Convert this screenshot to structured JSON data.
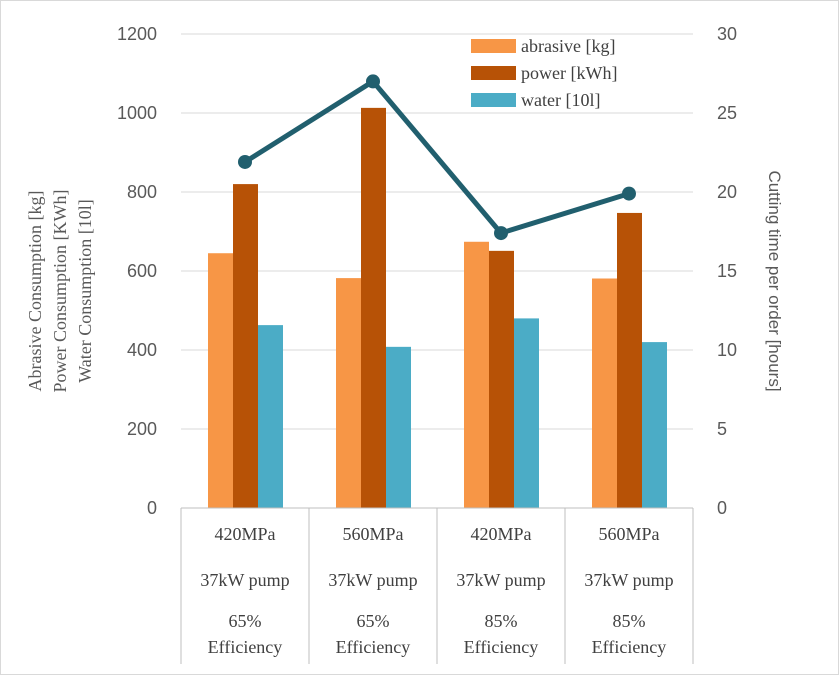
{
  "chart_data": {
    "type": "bar",
    "categories": [
      [
        "420MPa",
        "37kW pump",
        "65%",
        "Efficiency"
      ],
      [
        "560MPa",
        "37kW pump",
        "65%",
        "Efficiency"
      ],
      [
        "420MPa",
        "37kW pump",
        "85%",
        "Efficiency"
      ],
      [
        "560MPa",
        "37kW pump",
        "85%",
        "Efficiency"
      ]
    ],
    "series": [
      {
        "name": "abrasive [kg]",
        "values": [
          645,
          582,
          674,
          581
        ],
        "color": "#F79646",
        "axis": "left"
      },
      {
        "name": "power [kWh]",
        "values": [
          820,
          1013,
          651,
          747
        ],
        "color": "#B75206",
        "axis": "left"
      },
      {
        "name": "water [10l]",
        "values": [
          463,
          408,
          480,
          420
        ],
        "color": "#4BACC6",
        "axis": "left"
      }
    ],
    "line_series": {
      "name": "",
      "values": [
        21.9,
        27.0,
        17.4,
        19.9
      ],
      "color": "#215F6E",
      "axis": "right",
      "marker": "circle"
    },
    "ylabel_lines": [
      "Abrasive Consumption [kg]",
      "Power Consumption [KWh]",
      "Water Consumption [10l]"
    ],
    "y2label": "Cutting time per order [hours]",
    "ylim": [
      0,
      1200
    ],
    "yticks": [
      "0",
      "200",
      "400",
      "600",
      "800",
      "1000",
      "1200"
    ],
    "y2lim": [
      0,
      30
    ],
    "y2ticks": [
      "0",
      "5",
      "10",
      "15",
      "20",
      "25",
      "30"
    ],
    "grid": true,
    "legend": "top-right"
  }
}
